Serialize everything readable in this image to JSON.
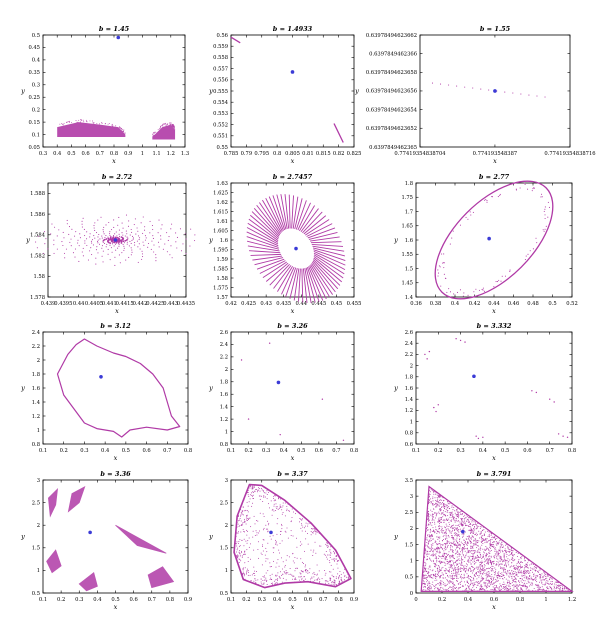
{
  "figure": {
    "point_color": "#b03aa6",
    "center_color": "#3b3bd6"
  },
  "chart_data": [
    {
      "type": "scatter",
      "title": "b = 1.45",
      "xlabel": "x",
      "ylabel": "y",
      "xlim": [
        0.3,
        1.3
      ],
      "ylim": [
        0.05,
        0.5
      ],
      "xticks": [
        "0.3",
        "0.4",
        "0.5",
        "0.6",
        "0.7",
        "0.8",
        "0.9",
        "1",
        "1.1",
        "1.2",
        "1.3"
      ],
      "yticks": [
        "0.05",
        "0.1",
        "0.15",
        "0.2",
        "0.25",
        "0.3",
        "0.35",
        "0.4",
        "0.45",
        "0.5"
      ],
      "fixed_point": [
        0.83,
        0.49
      ],
      "features": [
        {
          "kind": "band",
          "x": [
            0.4,
            0.55,
            0.7,
            0.83,
            0.88
          ],
          "top": [
            0.13,
            0.15,
            0.14,
            0.13,
            0.1
          ],
          "bottom": [
            0.09,
            0.09,
            0.09,
            0.09,
            0.09
          ]
        },
        {
          "kind": "band",
          "x": [
            1.07,
            1.14,
            1.2,
            1.23
          ],
          "top": [
            0.09,
            0.13,
            0.14,
            0.12
          ],
          "bottom": [
            0.08,
            0.08,
            0.08,
            0.08
          ]
        }
      ]
    },
    {
      "type": "scatter",
      "title": "b = 1.4933",
      "xlabel": "x",
      "ylabel": "y",
      "xlim": [
        0.785,
        0.825
      ],
      "ylim": [
        0.55,
        0.56
      ],
      "xticks": [
        "0.785",
        "0.79",
        "0.795",
        "0.8",
        "0.805",
        "0.81",
        "0.815",
        "0.82",
        "0.825"
      ],
      "yticks": [
        "0.55",
        "0.551",
        "0.552",
        "0.553",
        "0.554",
        "0.555",
        "0.556",
        "0.557",
        "0.558",
        "0.559",
        "0.56"
      ],
      "fixed_point": [
        0.805,
        0.5567
      ],
      "features": [
        {
          "kind": "segment",
          "from": [
            0.785,
            0.5598
          ],
          "to": [
            0.788,
            0.5593
          ]
        },
        {
          "kind": "segment",
          "from": [
            0.8185,
            0.5521
          ],
          "to": [
            0.8215,
            0.5504
          ]
        }
      ]
    },
    {
      "type": "scatter",
      "title": "b = 1.55",
      "xlabel": "x",
      "ylabel": "y",
      "xlim": [
        0.77419354838704,
        0.77419354838716
      ],
      "ylim": [
        0.6397849462365,
        0.63978494623662
      ],
      "xticks": [
        "0.77419354838704",
        "0.774193548387",
        "0.77419354838716"
      ],
      "xtick_values": [
        0.77419354838704,
        0.7741935483871,
        0.77419354838716
      ],
      "yticks": [
        "0.6397849462365",
        "0.63978494623652",
        "0.63978494623654",
        "0.63978494623656",
        "0.63978494623658",
        "0.6397849462366",
        "0.63978494623662"
      ],
      "fixed_point": [
        0.7741935483871,
        0.63978494623656
      ],
      "features": [
        {
          "kind": "dotted-segment",
          "from": [
            0.77419354838705,
            0.6397849462365685
          ],
          "to": [
            0.77419354838714,
            0.6397849462365535
          ]
        }
      ]
    },
    {
      "type": "scatter",
      "title": "b = 2.72",
      "xlabel": "x",
      "ylabel": "y",
      "xlim": [
        0.439,
        0.4435
      ],
      "ylim": [
        1.578,
        1.589
      ],
      "xticks": [
        "0.439",
        "0.4395",
        "0.44",
        "0.4405",
        "0.441",
        "0.4415",
        "0.442",
        "0.4425",
        "0.443",
        "0.4435"
      ],
      "yticks": [
        "1.578",
        "1.58",
        "1.582",
        "1.584",
        "1.586",
        "1.588"
      ],
      "fixed_point": [
        0.4412,
        1.5835
      ],
      "features": [
        {
          "kind": "spiral",
          "center": [
            0.4412,
            1.5835
          ],
          "rx": 0.0023,
          "ry": 0.0045,
          "arms": 6,
          "points": 340
        }
      ]
    },
    {
      "type": "scatter",
      "title": "b = 2.7457",
      "xlabel": "x",
      "ylabel": "y",
      "xlim": [
        0.42,
        0.455
      ],
      "ylim": [
        1.57,
        1.63
      ],
      "xticks": [
        "0.42",
        "0.425",
        "0.43",
        "0.435",
        "0.44",
        "0.445",
        "0.45",
        "0.455"
      ],
      "yticks": [
        "1.57",
        "1.575",
        "1.58",
        "1.585",
        "1.59",
        "1.595",
        "1.6",
        "1.605",
        "1.61",
        "1.615",
        "1.62",
        "1.625",
        "1.63"
      ],
      "fixed_point": [
        0.4385,
        1.5955
      ],
      "features": [
        {
          "kind": "rays",
          "center": [
            0.4385,
            1.5955
          ],
          "inner_rx": 0.0045,
          "inner_ry": 0.0115,
          "outer_rx": 0.0125,
          "outer_ry": 0.031,
          "count": 72,
          "rotation_deg": -35
        }
      ]
    },
    {
      "type": "scatter",
      "title": "b = 2.77",
      "xlabel": "x",
      "ylabel": "y",
      "xlim": [
        0.36,
        0.52
      ],
      "ylim": [
        1.4,
        1.8
      ],
      "xticks": [
        "0.36",
        "0.38",
        "0.4",
        "0.42",
        "0.44",
        "0.46",
        "0.48",
        "0.5",
        "0.52"
      ],
      "yticks": [
        "1.4",
        "1.45",
        "1.5",
        "1.55",
        "1.6",
        "1.65",
        "1.7",
        "1.75",
        "1.8"
      ],
      "fixed_point": [
        0.435,
        1.605
      ],
      "features": [
        {
          "kind": "ellipse",
          "center": [
            0.44,
            1.6
          ],
          "rx": 0.072,
          "ry": 0.18,
          "rotation_deg": -45,
          "points": 340
        }
      ]
    },
    {
      "type": "scatter",
      "title": "b = 3.12",
      "xlabel": "x",
      "ylabel": "y",
      "xlim": [
        0.1,
        0.8
      ],
      "ylim": [
        0.8,
        2.4
      ],
      "xticks": [
        "0.1",
        "0.2",
        "0.3",
        "0.4",
        "0.5",
        "0.6",
        "0.7",
        "0.8"
      ],
      "yticks": [
        "0.8",
        "1",
        "1.2",
        "1.4",
        "1.6",
        "1.8",
        "2",
        "2.2",
        "2.4"
      ],
      "fixed_point": [
        0.38,
        1.76
      ],
      "features": [
        {
          "kind": "closed-curve",
          "points": [
            [
              0.22,
              2.08
            ],
            [
              0.26,
              2.22
            ],
            [
              0.3,
              2.3
            ],
            [
              0.36,
              2.2
            ],
            [
              0.44,
              2.1
            ],
            [
              0.5,
              2.05
            ],
            [
              0.57,
              1.95
            ],
            [
              0.63,
              1.8
            ],
            [
              0.68,
              1.6
            ],
            [
              0.7,
              1.4
            ],
            [
              0.72,
              1.2
            ],
            [
              0.76,
              1.05
            ],
            [
              0.7,
              1.0
            ],
            [
              0.6,
              1.04
            ],
            [
              0.52,
              1.0
            ],
            [
              0.48,
              0.9
            ],
            [
              0.44,
              0.98
            ],
            [
              0.36,
              1.02
            ],
            [
              0.3,
              1.1
            ],
            [
              0.25,
              1.3
            ],
            [
              0.2,
              1.5
            ],
            [
              0.17,
              1.8
            ]
          ]
        }
      ]
    },
    {
      "type": "scatter",
      "title": "b = 3.26",
      "xlabel": "x",
      "ylabel": "y",
      "xlim": [
        0.1,
        0.8
      ],
      "ylim": [
        0.8,
        2.6
      ],
      "xticks": [
        "0.1",
        "0.2",
        "0.3",
        "0.4",
        "0.5",
        "0.6",
        "0.7",
        "0.8"
      ],
      "yticks": [
        "0.8",
        "1",
        "1.2",
        "1.4",
        "1.6",
        "1.8",
        "2",
        "2.2",
        "2.4",
        "2.6"
      ],
      "fixed_point": [
        0.37,
        1.79
      ],
      "features": [
        {
          "kind": "points",
          "points": [
            [
              0.16,
              2.15
            ],
            [
              0.32,
              2.42
            ],
            [
              0.2,
              1.2
            ],
            [
              0.38,
              0.95
            ],
            [
              0.62,
              1.52
            ],
            [
              0.74,
              0.86
            ]
          ]
        }
      ]
    },
    {
      "type": "scatter",
      "title": "b = 3.332",
      "xlabel": "x",
      "ylabel": "y",
      "xlim": [
        0.1,
        0.8
      ],
      "ylim": [
        0.6,
        2.6
      ],
      "xticks": [
        "0.1",
        "0.2",
        "0.3",
        "0.4",
        "0.5",
        "0.6",
        "0.7",
        "0.8"
      ],
      "yticks": [
        "0.6",
        "0.8",
        "1",
        "1.2",
        "1.4",
        "1.6",
        "1.8",
        "2",
        "2.2",
        "2.4",
        "2.6"
      ],
      "fixed_point": [
        0.36,
        1.81
      ],
      "features": [
        {
          "kind": "clusters",
          "points": [
            [
              0.14,
              2.2
            ],
            [
              0.15,
              2.12
            ],
            [
              0.16,
              2.25
            ],
            [
              0.28,
              2.48
            ],
            [
              0.3,
              2.45
            ],
            [
              0.32,
              2.42
            ],
            [
              0.18,
              1.25
            ],
            [
              0.19,
              1.18
            ],
            [
              0.2,
              1.3
            ],
            [
              0.37,
              0.74
            ],
            [
              0.38,
              0.7
            ],
            [
              0.4,
              0.72
            ],
            [
              0.62,
              1.55
            ],
            [
              0.64,
              1.52
            ],
            [
              0.7,
              1.4
            ],
            [
              0.72,
              1.35
            ],
            [
              0.74,
              0.78
            ],
            [
              0.76,
              0.74
            ],
            [
              0.78,
              0.72
            ]
          ]
        }
      ]
    },
    {
      "type": "scatter",
      "title": "b = 3.36",
      "xlabel": "x",
      "ylabel": "y",
      "xlim": [
        0.1,
        0.9
      ],
      "ylim": [
        0.5,
        3.0
      ],
      "xticks": [
        "0.1",
        "0.2",
        "0.3",
        "0.4",
        "0.5",
        "0.6",
        "0.7",
        "0.8",
        "0.9"
      ],
      "yticks": [
        "0.5",
        "1",
        "1.5",
        "2",
        "2.5",
        "3"
      ],
      "fixed_point": [
        0.36,
        1.84
      ],
      "features": [
        {
          "kind": "blob",
          "points": [
            [
              0.13,
              2.6
            ],
            [
              0.18,
              2.8
            ],
            [
              0.17,
              2.45
            ],
            [
              0.14,
              2.2
            ]
          ]
        },
        {
          "kind": "blob",
          "points": [
            [
              0.26,
              2.7
            ],
            [
              0.33,
              2.85
            ],
            [
              0.3,
              2.5
            ],
            [
              0.24,
              2.3
            ]
          ]
        },
        {
          "kind": "blob",
          "points": [
            [
              0.12,
              1.2
            ],
            [
              0.17,
              1.45
            ],
            [
              0.2,
              1.1
            ],
            [
              0.15,
              0.95
            ]
          ]
        },
        {
          "kind": "blob",
          "points": [
            [
              0.3,
              0.7
            ],
            [
              0.38,
              0.95
            ],
            [
              0.4,
              0.65
            ],
            [
              0.34,
              0.55
            ]
          ]
        },
        {
          "kind": "blob",
          "points": [
            [
              0.5,
              2.0
            ],
            [
              0.68,
              1.6
            ],
            [
              0.78,
              1.38
            ],
            [
              0.62,
              1.55
            ]
          ]
        },
        {
          "kind": "blob",
          "points": [
            [
              0.68,
              0.9
            ],
            [
              0.76,
              1.08
            ],
            [
              0.82,
              0.75
            ],
            [
              0.7,
              0.62
            ]
          ]
        }
      ]
    },
    {
      "type": "scatter",
      "title": "b = 3.37",
      "xlabel": "x",
      "ylabel": "y",
      "xlim": [
        0.1,
        0.9
      ],
      "ylim": [
        0.5,
        3.0
      ],
      "xticks": [
        "0.1",
        "0.2",
        "0.3",
        "0.4",
        "0.5",
        "0.6",
        "0.7",
        "0.8",
        "0.9"
      ],
      "yticks": [
        "0.5",
        "1",
        "1.5",
        "2",
        "2.5",
        "3"
      ],
      "fixed_point": [
        0.36,
        1.84
      ],
      "features": [
        {
          "kind": "outline",
          "points": [
            [
              0.14,
              2.2
            ],
            [
              0.22,
              2.9
            ],
            [
              0.3,
              2.88
            ],
            [
              0.45,
              2.55
            ],
            [
              0.62,
              2.05
            ],
            [
              0.78,
              1.45
            ],
            [
              0.88,
              0.82
            ],
            [
              0.78,
              0.64
            ],
            [
              0.6,
              0.75
            ],
            [
              0.45,
              0.72
            ],
            [
              0.32,
              0.62
            ],
            [
              0.18,
              0.8
            ],
            [
              0.12,
              1.4
            ]
          ]
        }
      ]
    },
    {
      "type": "scatter",
      "title": "b = 3.791",
      "xlabel": "x",
      "ylabel": "y",
      "xlim": [
        0,
        1.2
      ],
      "ylim": [
        0,
        3.5
      ],
      "xticks": [
        "0",
        "0.2",
        "0.4",
        "0.6",
        "0.8",
        "1",
        "1.2"
      ],
      "yticks": [
        "0",
        "0.5",
        "1",
        "1.5",
        "2",
        "2.5",
        "3",
        "3.5"
      ],
      "fixed_point": [
        0.36,
        1.9
      ],
      "features": [
        {
          "kind": "triangle-fill",
          "points": [
            [
              0.1,
              3.3
            ],
            [
              0.04,
              0.05
            ],
            [
              1.2,
              0.05
            ]
          ],
          "count": 2600
        }
      ]
    }
  ]
}
